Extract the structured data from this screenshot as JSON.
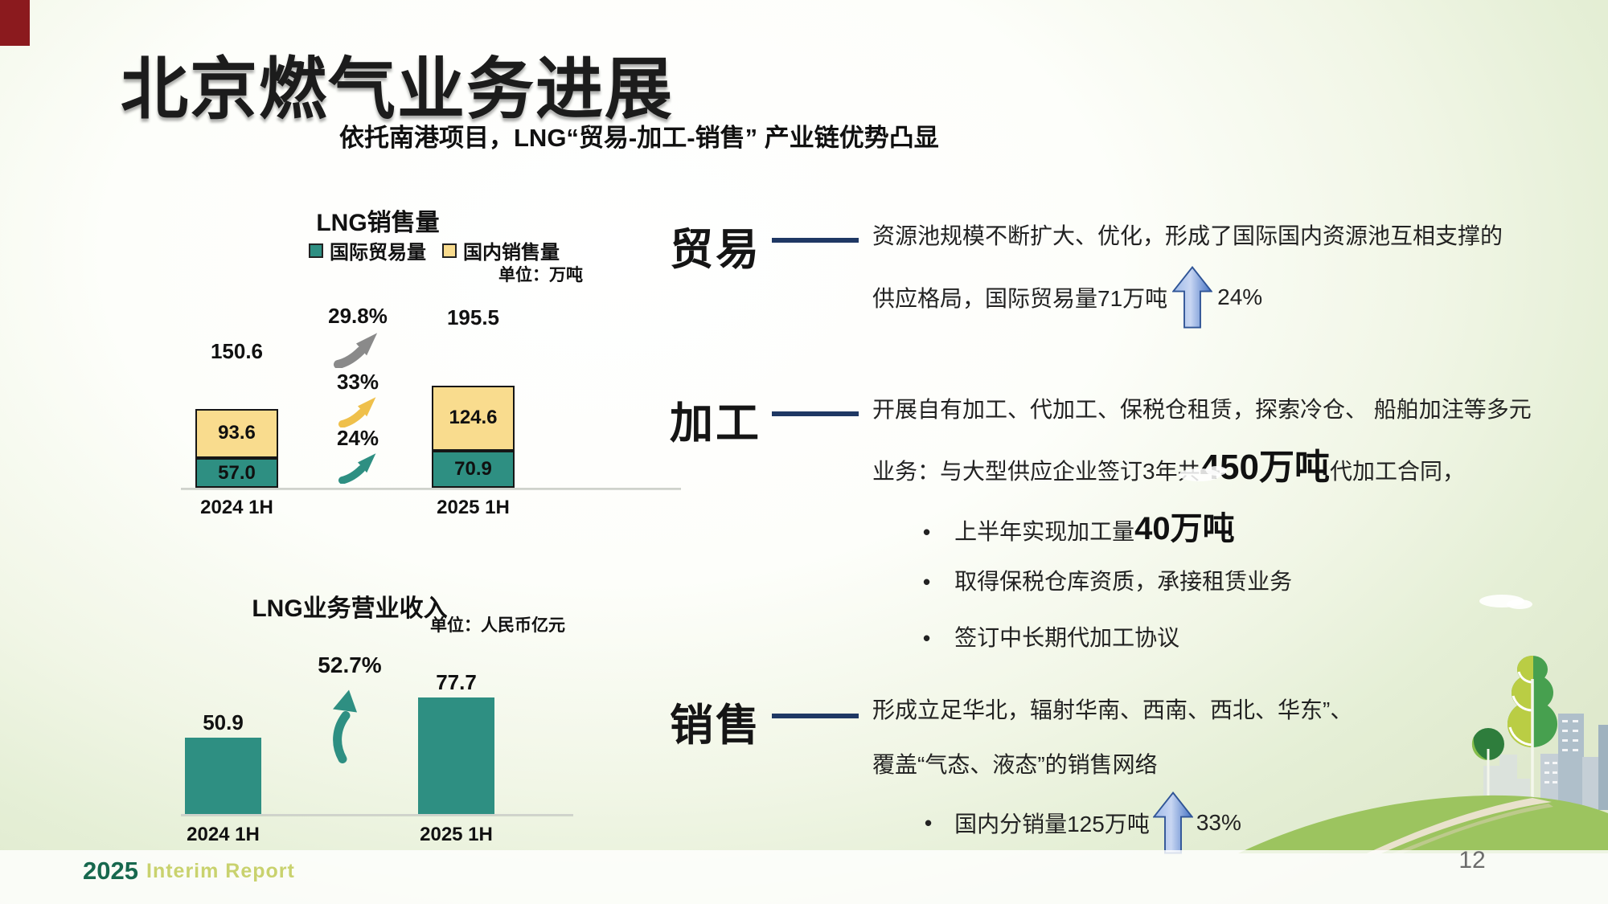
{
  "slide": {
    "title": "北京燃气业务进展",
    "subtitle": "依托南港项目，LNG“贸易-加工-销售”  产业链优势凸显",
    "footer_year": "2025",
    "footer_report": "Interim Report",
    "page_number": "12"
  },
  "colors": {
    "teal": "#2E8F82",
    "bar_yellow": "#F9DC8E",
    "navy_divider": "#1F3864",
    "gray_arrow": "#8A8A8A",
    "yellow_arrow": "#EFC04B",
    "blue_arrow": "#4472C4",
    "footer_green": "#17684E",
    "footer_light_green": "#C9D26E"
  },
  "chart_data": [
    {
      "type": "bar",
      "variant": "stacked",
      "title": "LNG销售量",
      "unit_label": "单位：万吨",
      "legend": [
        {
          "label": "国际贸易量",
          "color": "#2E8F82"
        },
        {
          "label": "国内销售量",
          "color": "#F9DC8E"
        }
      ],
      "categories": [
        "2024 1H",
        "2025 1H"
      ],
      "series": [
        {
          "name": "国际贸易量",
          "values": [
            57.0,
            70.9
          ],
          "value_labels": [
            "57.0",
            "70.9"
          ]
        },
        {
          "name": "国内销售量",
          "values": [
            93.6,
            124.6
          ],
          "value_labels": [
            "93.6",
            "124.6"
          ]
        }
      ],
      "totals": [
        150.6,
        195.5
      ],
      "total_labels": [
        "150.6",
        "195.5"
      ],
      "growth_annotations": [
        {
          "label": "29.8%",
          "applies_to": "合计",
          "color": "gray"
        },
        {
          "label": "33%",
          "applies_to": "国内销售量",
          "color": "yellow"
        },
        {
          "label": "24%",
          "applies_to": "国际贸易量",
          "color": "teal"
        }
      ],
      "ylim": [
        0,
        200
      ],
      "grid": false,
      "legend_position": "top"
    },
    {
      "type": "bar",
      "title": "LNG业务营业收入",
      "unit_label": "单位：人民币亿元",
      "categories": [
        "2024 1H",
        "2025 1H"
      ],
      "values": [
        50.9,
        77.7
      ],
      "value_labels": [
        "50.9",
        "77.7"
      ],
      "growth_annotations": [
        {
          "label": "52.7%",
          "color": "teal"
        }
      ],
      "ylim": [
        0,
        90
      ],
      "grid": false
    }
  ],
  "sections": {
    "trade": {
      "heading": "贸易",
      "line1": "资源池规模不断扩大、优化，形成了国际国内资源池互相支撑的",
      "line2_pre": "供应格局，国际贸易量71万吨",
      "line2_growth": "24%"
    },
    "processing": {
      "heading": "加工",
      "line1": "开展自有加工、代加工、保税仓租赁，探索冷仓、 船舶加注等多元",
      "line2_pre": "业务：与大型供应企业签订3年共",
      "line2_big": "450万吨",
      "line2_post": "代加工合同，",
      "bullets": [
        {
          "pre": "上半年实现加工量",
          "big": "40万吨"
        },
        {
          "pre": "取得保税仓库资质，承接租赁业务",
          "big": ""
        },
        {
          "pre": "签订中长期代加工协议",
          "big": ""
        }
      ]
    },
    "sales": {
      "heading": "销售",
      "line1": "形成立足华北，辐射华南、西南、西北、华东”、",
      "line2": "覆盖“气态、液态”的销售网络",
      "bullet_pre": "国内分销量125万吨",
      "bullet_growth": "33%"
    }
  }
}
